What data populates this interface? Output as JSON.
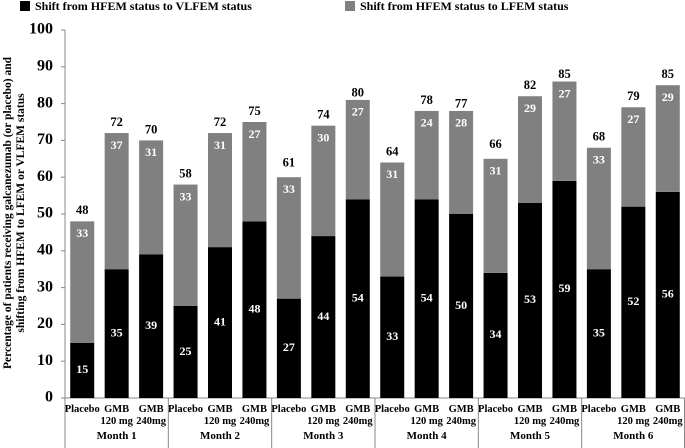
{
  "chart_data": {
    "type": "stacked_bar",
    "y_label": "Percentage of patients receiving galcanezumab (or placebo) and\nshifting from HFEM to LFEM or VLFEM status",
    "categories": [
      "Placebo",
      "GMB\n120 mg",
      "GMB\n240mg",
      "Placebo",
      "GMB\n120 mg",
      "GMB\n240mg",
      "Placebo",
      "GMB\n120 mg",
      "GMB\n240mg",
      "Placebo",
      "GMB\n120 mg",
      "GMB\n240mg",
      "Placebo",
      "GMB\n120 mg",
      "GMB\n240mg",
      "Placebo",
      "GMB\n120 mg",
      "GMB\n240mg"
    ],
    "groups": [
      "Month 1",
      "Month 2",
      "Month 3",
      "Month 4",
      "Month 5",
      "Month 6"
    ],
    "series": [
      {
        "name": "Shift from HFEM status to VLFEM status",
        "color": "#000000",
        "values": [
          15,
          35,
          39,
          25,
          41,
          48,
          27,
          44,
          54,
          33,
          54,
          50,
          34,
          53,
          59,
          35,
          52,
          56
        ]
      },
      {
        "name": "Shift from HFEM status to LFEM status",
        "color": "#808080",
        "values": [
          33,
          37,
          31,
          33,
          31,
          27,
          33,
          30,
          27,
          31,
          24,
          28,
          31,
          29,
          27,
          33,
          27,
          29
        ]
      }
    ],
    "totals": [
      48,
      72,
      70,
      58,
      72,
      75,
      61,
      74,
      80,
      64,
      78,
      77,
      66,
      82,
      85,
      68,
      79,
      85
    ],
    "ylim": [
      0,
      100
    ],
    "yticks": [
      0,
      10,
      20,
      30,
      40,
      50,
      60,
      70,
      80,
      90,
      100
    ],
    "legend": "top"
  }
}
